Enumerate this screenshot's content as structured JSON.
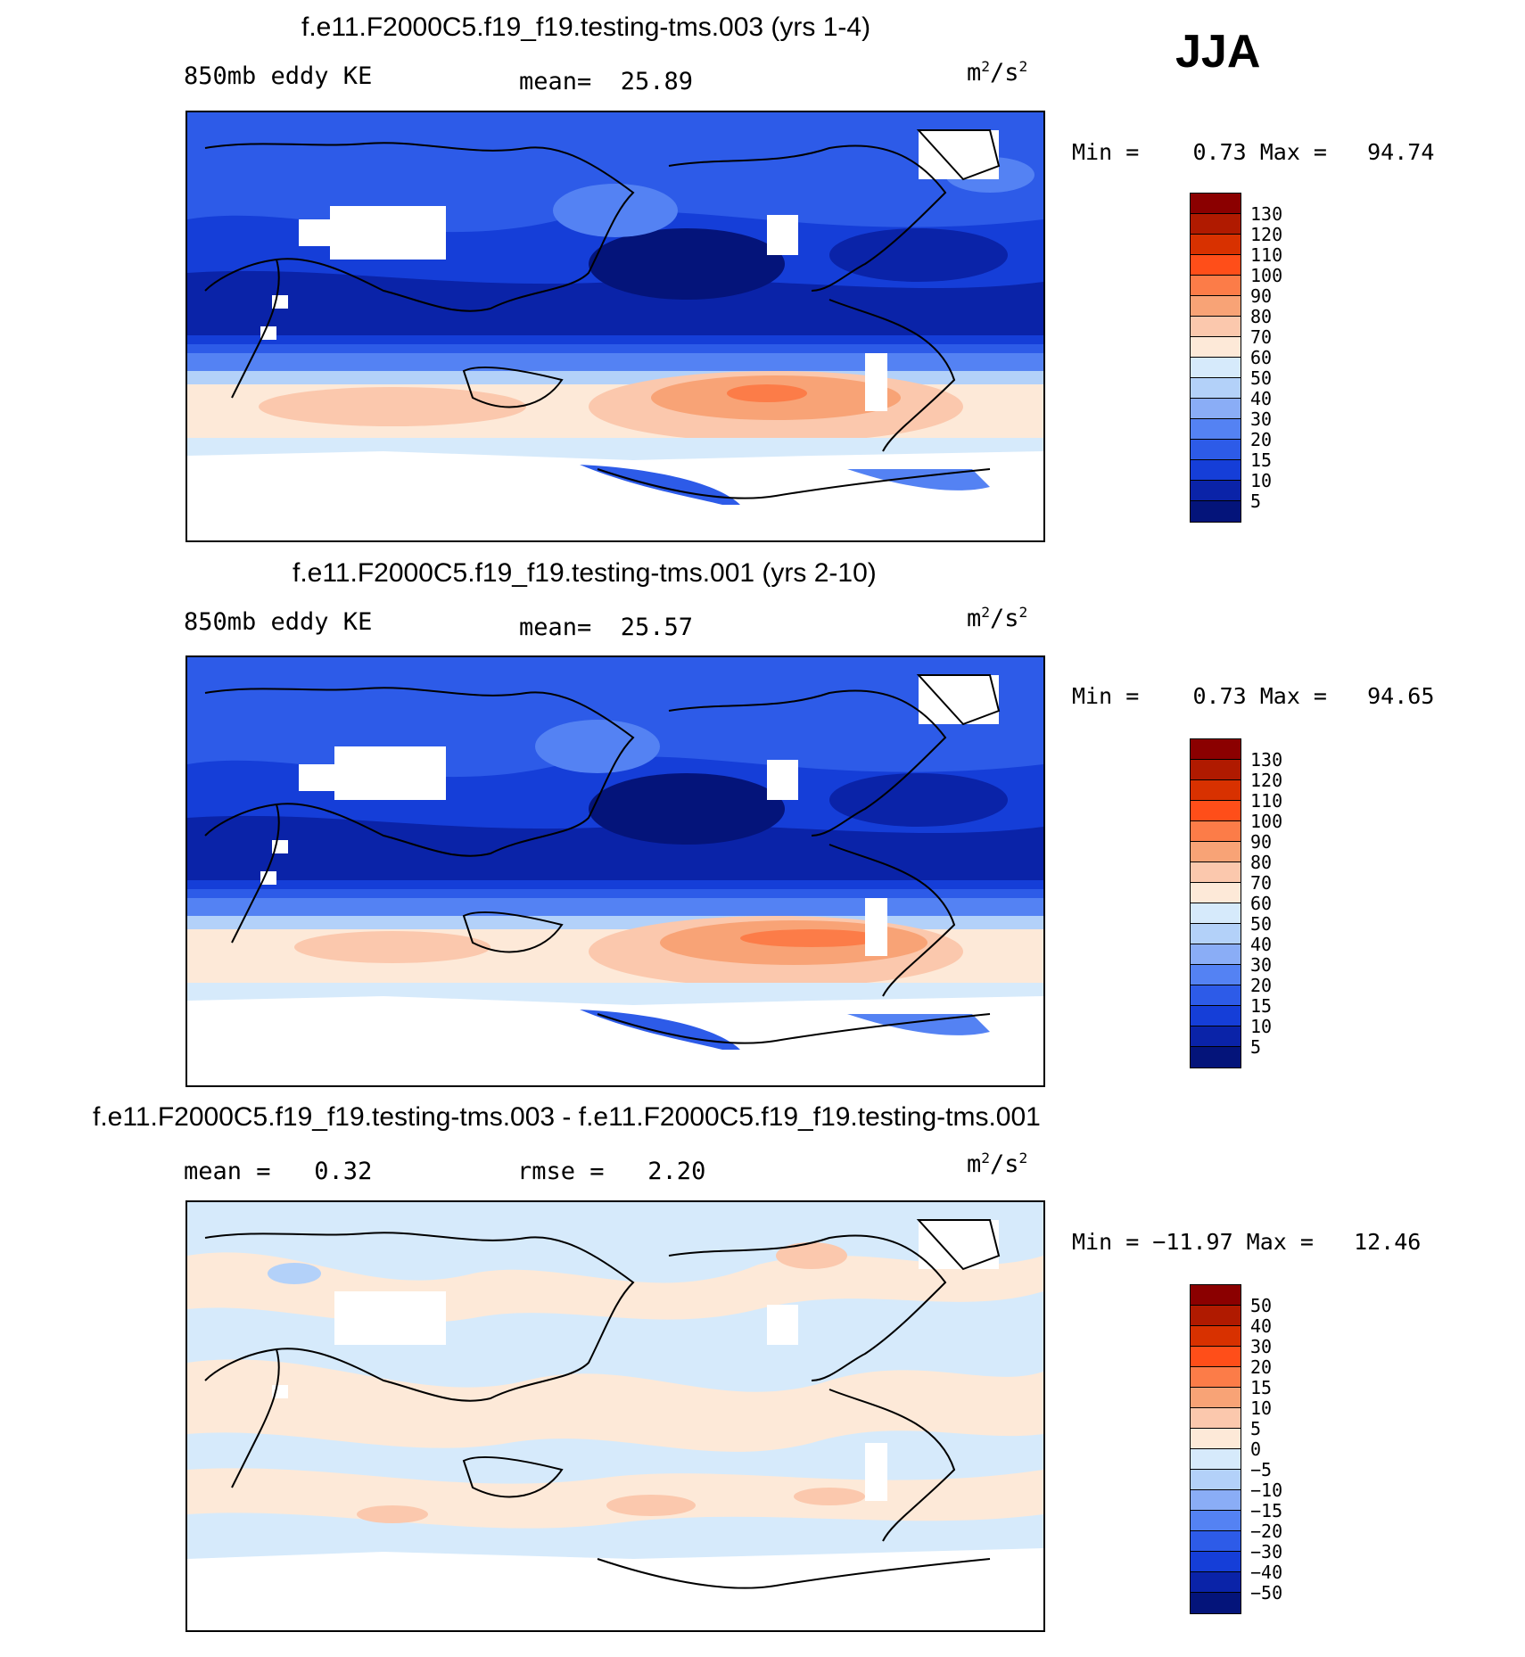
{
  "season": "JJA",
  "panels": [
    {
      "title": "f.e11.F2000C5.f19_f19.testing-tms.003 (yrs 1-4)",
      "variable": "850mb eddy KE",
      "stat1": "mean=  25.89",
      "stat2": "",
      "units_base": "m",
      "units_exp1": "2",
      "units_mid": "/s",
      "units_exp2": "2",
      "minmax": "Min =    0.73 Max =   94.74",
      "colorbar": {
        "colors": [
          "#8b0000",
          "#b01a00",
          "#d83100",
          "#ff4e19",
          "#fc7c48",
          "#f8a376",
          "#fbc8ad",
          "#fde9d8",
          "#d6eafb",
          "#b3d1f9",
          "#8aadf6",
          "#5482f3",
          "#2d5be8",
          "#153ed8",
          "#0a23a8",
          "#04147a"
        ],
        "labels": [
          "130",
          "120",
          "110",
          "100",
          "90",
          "80",
          "70",
          "60",
          "50",
          "40",
          "30",
          "20",
          "15",
          "10",
          "5"
        ]
      }
    },
    {
      "title": "f.e11.F2000C5.f19_f19.testing-tms.001 (yrs 2-10)",
      "variable": "850mb eddy KE",
      "stat1": "mean=  25.57",
      "stat2": "",
      "units_base": "m",
      "units_exp1": "2",
      "units_mid": "/s",
      "units_exp2": "2",
      "minmax": "Min =    0.73 Max =   94.65",
      "colorbar": {
        "colors": [
          "#8b0000",
          "#b01a00",
          "#d83100",
          "#ff4e19",
          "#fc7c48",
          "#f8a376",
          "#fbc8ad",
          "#fde9d8",
          "#d6eafb",
          "#b3d1f9",
          "#8aadf6",
          "#5482f3",
          "#2d5be8",
          "#153ed8",
          "#0a23a8",
          "#04147a"
        ],
        "labels": [
          "130",
          "120",
          "110",
          "100",
          "90",
          "80",
          "70",
          "60",
          "50",
          "40",
          "30",
          "20",
          "15",
          "10",
          "5"
        ]
      }
    },
    {
      "title": "f.e11.F2000C5.f19_f19.testing-tms.003 - f.e11.F2000C5.f19_f19.testing-tms.001",
      "variable": "mean =   0.32",
      "stat1": "rmse =   2.20",
      "stat2": "",
      "units_base": "m",
      "units_exp1": "2",
      "units_mid": "/s",
      "units_exp2": "2",
      "minmax": "Min = −11.97 Max =   12.46",
      "colorbar": {
        "colors": [
          "#8b0000",
          "#b01a00",
          "#d83100",
          "#ff4e19",
          "#fc7c48",
          "#f8a376",
          "#fbc8ad",
          "#fde9d8",
          "#d6eafb",
          "#b3d1f9",
          "#8aadf6",
          "#5482f3",
          "#2d5be8",
          "#153ed8",
          "#0a23a8",
          "#04147a"
        ],
        "labels": [
          "50",
          "40",
          "30",
          "20",
          "15",
          "10",
          "5",
          "0",
          "−5",
          "−10",
          "−15",
          "−20",
          "−30",
          "−40",
          "−50"
        ]
      }
    }
  ]
}
